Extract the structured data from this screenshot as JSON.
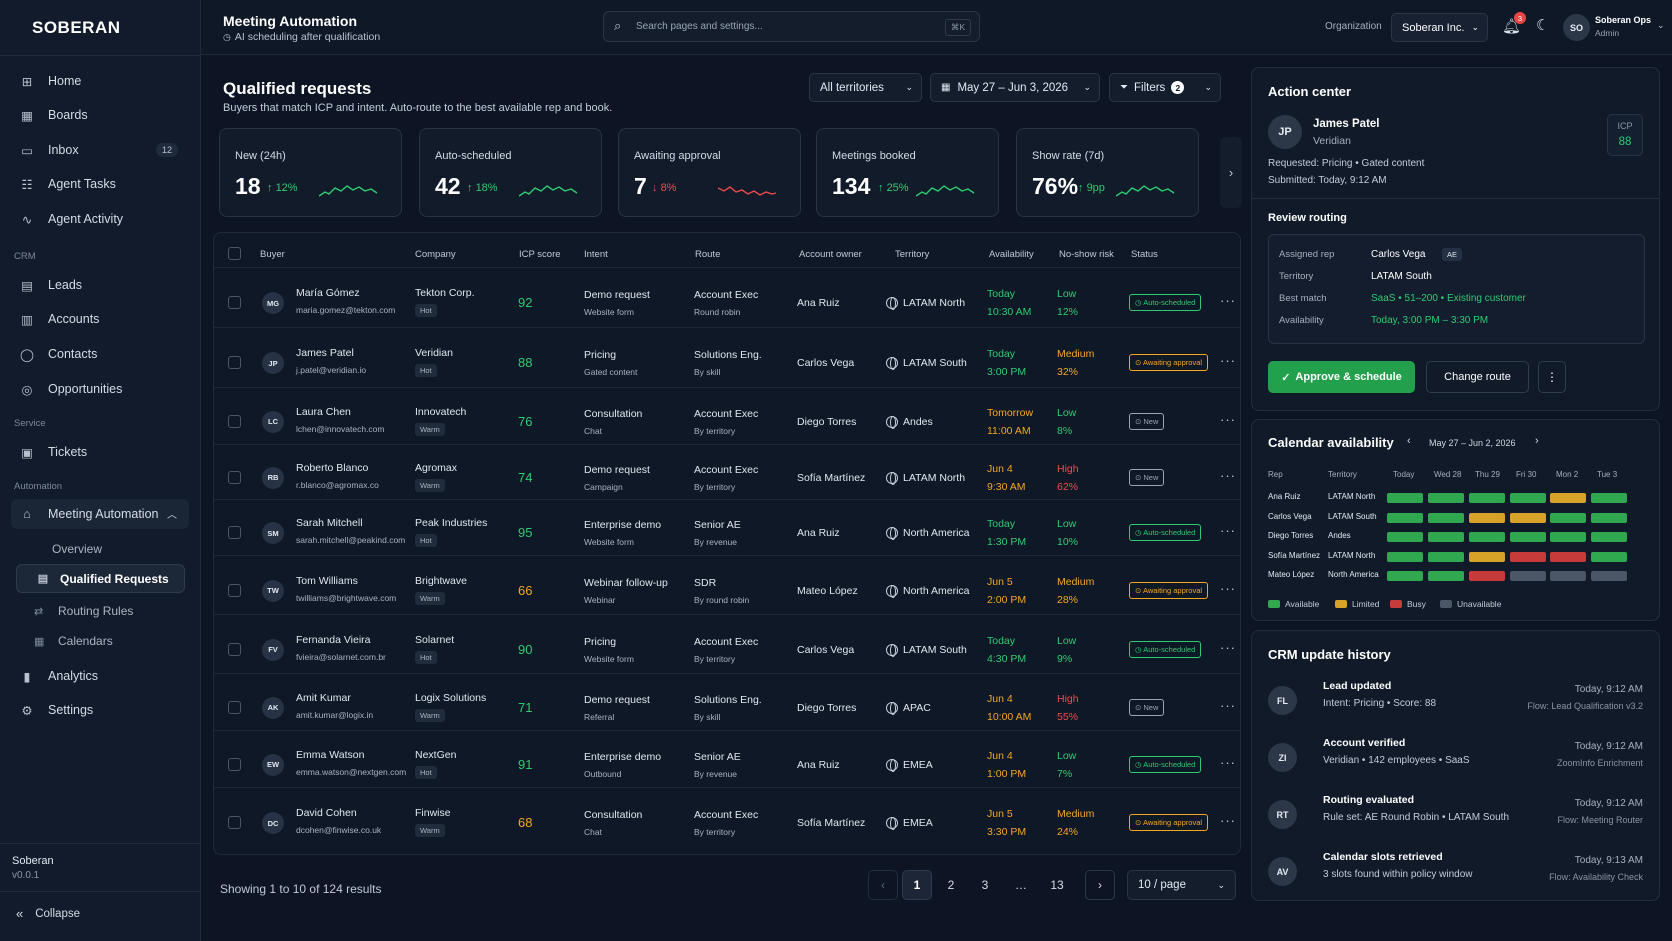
{
  "sidebar": {
    "logo": "SOBERAN",
    "items": [
      {
        "label": "Home",
        "icon": "grid-icon"
      },
      {
        "label": "Boards",
        "icon": "boards-icon"
      },
      {
        "label": "Inbox",
        "icon": "inbox-icon",
        "count": "12"
      },
      {
        "label": "Agent Tasks",
        "icon": "tasks-icon"
      },
      {
        "label": "Agent Activity",
        "icon": "activity-icon"
      }
    ],
    "crm_label": "CRM",
    "crm_items": [
      {
        "label": "Leads"
      },
      {
        "label": "Accounts"
      },
      {
        "label": "Contacts"
      },
      {
        "label": "Opportunities"
      }
    ],
    "service_label": "Service",
    "service_items": [
      {
        "label": "Tickets"
      }
    ],
    "automation_label": "Automation",
    "automation_item": "Meeting Automation",
    "sub_items": [
      "Overview",
      "Qualified Requests",
      "Routing Rules",
      "Calendars"
    ],
    "bottom_items": [
      {
        "label": "Analytics"
      },
      {
        "label": "Settings"
      }
    ],
    "footer": {
      "name": "Soberan",
      "version": "v0.0.1",
      "collapse": "Collapse"
    }
  },
  "topbar": {
    "title": "Meeting Automation",
    "subtitle": "AI scheduling after qualification",
    "search_placeholder": "Search pages and settings...",
    "kbd": "⌘K",
    "org_label": "Organization",
    "org_value": "Soberan Inc.",
    "notif_count": "3",
    "user_initials": "SO",
    "user_name": "Soberan Ops",
    "user_role": "Admin"
  },
  "page": {
    "title": "Qualified requests",
    "subtitle": "Buyers that match ICP and intent. Auto-route to the best available rep and book.",
    "territory": "All territories",
    "date_range": "May 27 – Jun 3, 2026",
    "filters": "Filters",
    "filter_count": "2"
  },
  "kpis": [
    {
      "label": "New (24h)",
      "value": "18",
      "delta": "12%",
      "trend": "up"
    },
    {
      "label": "Auto-scheduled",
      "value": "42",
      "delta": "18%",
      "trend": "up"
    },
    {
      "label": "Awaiting approval",
      "value": "7",
      "delta": "8%",
      "trend": "down"
    },
    {
      "label": "Meetings booked",
      "value": "134",
      "delta": "25%",
      "trend": "up"
    },
    {
      "label": "Show rate (7d)",
      "value": "76%",
      "delta": "9pp",
      "trend": "up"
    }
  ],
  "table": {
    "headers": [
      "Buyer",
      "Company",
      "ICP score",
      "Intent",
      "Route",
      "Account owner",
      "Territory",
      "Availability",
      "No-show risk",
      "Status"
    ],
    "rows": [
      {
        "initials": "MG",
        "name": "María Gómez",
        "email": "maria.gomez@tekton.com",
        "company": "Tekton Corp.",
        "tag": "Hot",
        "icp": "92",
        "intent": "Demo request",
        "intent_src": "Website form",
        "route": "Account Exec",
        "route_sub": "Round robin",
        "owner": "Ana Ruiz",
        "territory": "LATAM North",
        "avail1": "Today",
        "avail2": "10:30 AM",
        "risk": "Low",
        "risk_pct": "12%",
        "status": "Auto-scheduled"
      },
      {
        "initials": "JP",
        "name": "James Patel",
        "email": "j.patel@veridian.io",
        "company": "Veridian",
        "tag": "Hot",
        "icp": "88",
        "intent": "Pricing",
        "intent_src": "Gated content",
        "route": "Solutions Eng.",
        "route_sub": "By skill",
        "owner": "Carlos Vega",
        "territory": "LATAM South",
        "avail1": "Today",
        "avail2": "3:00 PM",
        "risk": "Medium",
        "risk_pct": "32%",
        "status": "Awaiting approval"
      },
      {
        "initials": "LC",
        "name": "Laura Chen",
        "email": "lchen@innovatech.com",
        "company": "Innovatech",
        "tag": "Warm",
        "icp": "76",
        "intent": "Consultation",
        "intent_src": "Chat",
        "route": "Account Exec",
        "route_sub": "By territory",
        "owner": "Diego Torres",
        "territory": "Andes",
        "avail1": "Tomorrow",
        "avail2": "11:00 AM",
        "risk": "Low",
        "risk_pct": "8%",
        "status": "New"
      },
      {
        "initials": "RB",
        "name": "Roberto Blanco",
        "email": "r.blanco@agromax.co",
        "company": "Agromax",
        "tag": "Warm",
        "icp": "74",
        "intent": "Demo request",
        "intent_src": "Campaign",
        "route": "Account Exec",
        "route_sub": "By territory",
        "owner": "Sofía Martínez",
        "territory": "LATAM North",
        "avail1": "Jun 4",
        "avail2": "9:30 AM",
        "risk": "High",
        "risk_pct": "62%",
        "status": "New"
      },
      {
        "initials": "SM",
        "name": "Sarah Mitchell",
        "email": "sarah.mitchell@peakind.com",
        "company": "Peak Industries",
        "tag": "Hot",
        "icp": "95",
        "intent": "Enterprise demo",
        "intent_src": "Website form",
        "route": "Senior AE",
        "route_sub": "By revenue",
        "owner": "Ana Ruiz",
        "territory": "North America",
        "avail1": "Today",
        "avail2": "1:30 PM",
        "risk": "Low",
        "risk_pct": "10%",
        "status": "Auto-scheduled"
      },
      {
        "initials": "TW",
        "name": "Tom Williams",
        "email": "twilliams@brightwave.com",
        "company": "Brightwave",
        "tag": "Warm",
        "icp": "66",
        "intent": "Webinar follow-up",
        "intent_src": "Webinar",
        "route": "SDR",
        "route_sub": "By round robin",
        "owner": "Mateo López",
        "territory": "North America",
        "avail1": "Jun 5",
        "avail2": "2:00 PM",
        "risk": "Medium",
        "risk_pct": "28%",
        "status": "Awaiting approval"
      },
      {
        "initials": "FV",
        "name": "Fernanda Vieira",
        "email": "fvieira@solarnet.com.br",
        "company": "Solarnet",
        "tag": "Hot",
        "icp": "90",
        "intent": "Pricing",
        "intent_src": "Website form",
        "route": "Account Exec",
        "route_sub": "By territory",
        "owner": "Carlos Vega",
        "territory": "LATAM South",
        "avail1": "Today",
        "avail2": "4:30 PM",
        "risk": "Low",
        "risk_pct": "9%",
        "status": "Auto-scheduled"
      },
      {
        "initials": "AK",
        "name": "Amit Kumar",
        "email": "amit.kumar@logix.in",
        "company": "Logix Solutions",
        "tag": "Warm",
        "icp": "71",
        "intent": "Demo request",
        "intent_src": "Referral",
        "route": "Solutions Eng.",
        "route_sub": "By skill",
        "owner": "Diego Torres",
        "territory": "APAC",
        "avail1": "Jun 4",
        "avail2": "10:00 AM",
        "risk": "High",
        "risk_pct": "55%",
        "status": "New"
      },
      {
        "initials": "EW",
        "name": "Emma Watson",
        "email": "emma.watson@nextgen.com",
        "company": "NextGen",
        "tag": "Hot",
        "icp": "91",
        "intent": "Enterprise demo",
        "intent_src": "Outbound",
        "route": "Senior AE",
        "route_sub": "By revenue",
        "owner": "Ana Ruiz",
        "territory": "EMEA",
        "avail1": "Jun 4",
        "avail2": "1:00 PM",
        "risk": "Low",
        "risk_pct": "7%",
        "status": "Auto-scheduled"
      },
      {
        "initials": "DC",
        "name": "David Cohen",
        "email": "dcohen@finwise.co.uk",
        "company": "Finwise",
        "tag": "Warm",
        "icp": "68",
        "intent": "Consultation",
        "intent_src": "Chat",
        "route": "Account Exec",
        "route_sub": "By territory",
        "owner": "Sofía Martínez",
        "territory": "EMEA",
        "avail1": "Jun 5",
        "avail2": "3:30 PM",
        "risk": "Medium",
        "risk_pct": "24%",
        "status": "Awaiting approval"
      }
    ]
  },
  "pagination": {
    "summary": "Showing 1 to 10 of 124 results",
    "pages": [
      "1",
      "2",
      "3",
      "…",
      "13"
    ],
    "per_page": "10 / page"
  },
  "action_center": {
    "title": "Action center",
    "initials": "JP",
    "name": "James Patel",
    "company": "Veridian",
    "icp_label": "ICP",
    "icp_value": "88",
    "requested": "Requested: Pricing  •  Gated content",
    "submitted": "Submitted: Today, 9:12 AM",
    "review_title": "Review routing",
    "fields": [
      {
        "label": "Assigned rep",
        "value": "Carlos Vega",
        "badge": "AE"
      },
      {
        "label": "Territory",
        "value": "LATAM South"
      },
      {
        "label": "Best match",
        "value": "SaaS • 51–200 • Existing customer"
      },
      {
        "label": "Availability",
        "value": "Today, 3:00 PM – 3:30 PM"
      }
    ],
    "approve": "Approve & schedule",
    "change": "Change route"
  },
  "calendar": {
    "title": "Calendar availability",
    "range": "May 27 – Jun 2, 2026",
    "col_headers": [
      "Rep",
      "Territory",
      "Today",
      "Wed 28",
      "Thu 29",
      "Fri 30",
      "Mon 2",
      "Tue 3"
    ],
    "rows": [
      {
        "rep": "Ana Ruiz",
        "territory": "LATAM North",
        "slots": [
          "available",
          "available",
          "available",
          "available",
          "limited",
          "available"
        ]
      },
      {
        "rep": "Carlos Vega",
        "territory": "LATAM South",
        "slots": [
          "available",
          "available",
          "limited",
          "limited",
          "available",
          "available"
        ]
      },
      {
        "rep": "Diego Torres",
        "territory": "Andes",
        "slots": [
          "available",
          "available",
          "available",
          "available",
          "available",
          "available"
        ]
      },
      {
        "rep": "Sofía Martínez",
        "territory": "LATAM North",
        "slots": [
          "available",
          "available",
          "limited",
          "busy",
          "busy",
          "available"
        ]
      },
      {
        "rep": "Mateo López",
        "territory": "North America",
        "slots": [
          "available",
          "available",
          "busy",
          "unavailable",
          "unavailable",
          "unavailable"
        ]
      }
    ],
    "legend": [
      "Available",
      "Limited",
      "Busy",
      "Unavailable"
    ],
    "colors": {
      "available": "#2fa850",
      "limited": "#d6a328",
      "busy": "#c83b3b",
      "unavailable": "#4a5566"
    }
  },
  "history": {
    "title": "CRM update history",
    "items": [
      {
        "initials": "FL",
        "title": "Lead updated",
        "detail": "Intent: Pricing • Score: 88",
        "time": "Today, 9:12 AM",
        "source": "Flow: Lead Qualification v3.2"
      },
      {
        "initials": "ZI",
        "title": "Account verified",
        "detail": "Veridian • 142 employees • SaaS",
        "time": "Today, 9:12 AM",
        "source": "ZoomInfo Enrichment"
      },
      {
        "initials": "RT",
        "title": "Routing evaluated",
        "detail": "Rule set: AE Round Robin • LATAM South",
        "time": "Today, 9:12 AM",
        "source": "Flow: Meeting Router"
      },
      {
        "initials": "AV",
        "title": "Calendar slots retrieved",
        "detail": "3 slots found within policy window",
        "time": "Today, 9:13 AM",
        "source": "Flow: Availability Check"
      }
    ]
  }
}
